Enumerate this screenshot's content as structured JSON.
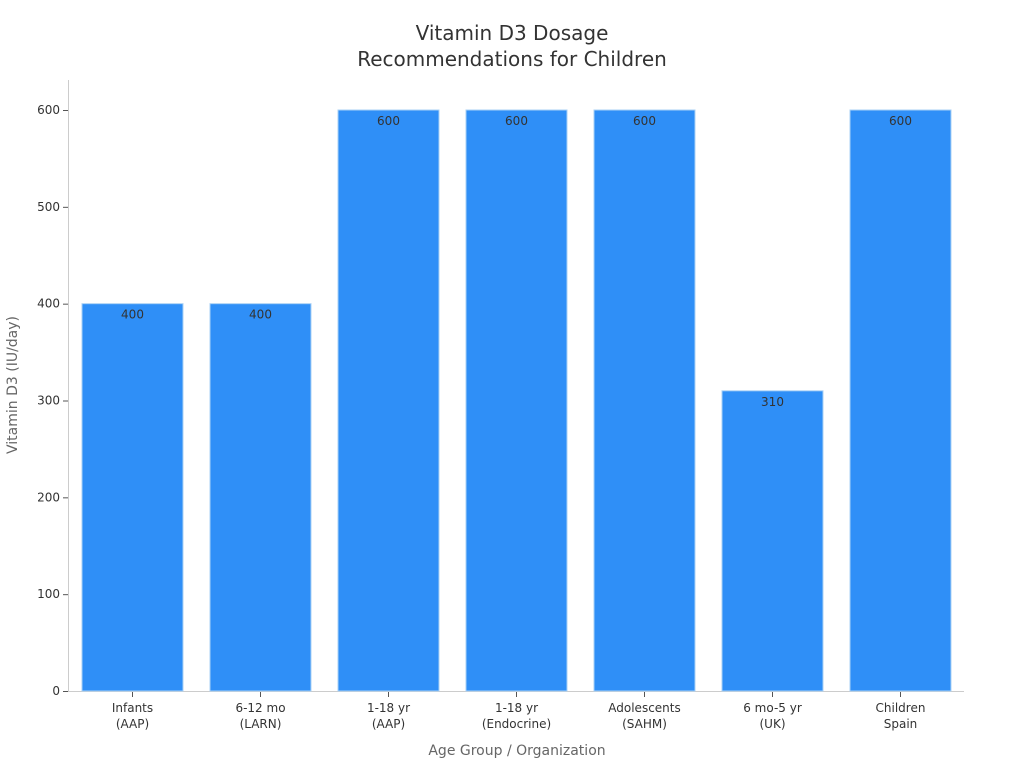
{
  "chart_data": {
    "type": "bar",
    "title": [
      "Vitamin D3 Dosage",
      "Recommendations for Children"
    ],
    "xlabel": "Age Group / Organization",
    "ylabel": "Vitamin D3 (IU/day)",
    "categories": [
      [
        "Infants",
        "(AAP)"
      ],
      [
        "6-12 mo",
        "(LARN)"
      ],
      [
        "1-18 yr",
        "(AAP)"
      ],
      [
        "1-18 yr",
        "(Endocrine)"
      ],
      [
        "Adolescents",
        "(SAHM)"
      ],
      [
        "6 mo-5 yr",
        "(UK)"
      ],
      [
        "Children",
        "Spain"
      ]
    ],
    "values": [
      400,
      400,
      600,
      600,
      600,
      310,
      600
    ],
    "ylim": [
      0,
      600
    ],
    "yticks": [
      0,
      100,
      200,
      300,
      400,
      500,
      600
    ],
    "grid": false,
    "bar_color": "#2f8ff7",
    "bar_edge_color": "#a9d0f5"
  }
}
